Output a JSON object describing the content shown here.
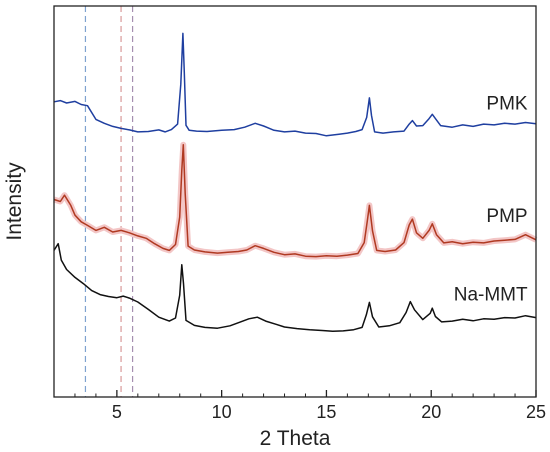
{
  "chart_data": {
    "type": "line",
    "title": "",
    "xlabel": "2 Theta",
    "ylabel": "Intensity",
    "xlim": [
      2,
      25
    ],
    "ylim": [
      0,
      100
    ],
    "x_ticks": [
      5,
      10,
      15,
      20,
      25
    ],
    "y_ticks_shown": false,
    "grid": false,
    "legend": "none",
    "reference_lines": [
      {
        "x": 3.5,
        "style": "dashed",
        "color": "#7fa2cf"
      },
      {
        "x": 5.2,
        "style": "dashed",
        "color": "#d99a9a"
      },
      {
        "x": 5.75,
        "style": "dashed",
        "color": "#a58fb0"
      }
    ],
    "series": [
      {
        "name": "PMK",
        "color": "#1f3fa0",
        "points": [
          [
            2.0,
            75.5
          ],
          [
            2.3,
            75.8
          ],
          [
            2.6,
            75.2
          ],
          [
            3.0,
            75.6
          ],
          [
            3.3,
            74.8
          ],
          [
            3.6,
            74.5
          ],
          [
            4.0,
            71.0
          ],
          [
            4.4,
            70.0
          ],
          [
            4.8,
            69.2
          ],
          [
            5.2,
            68.7
          ],
          [
            5.6,
            68.3
          ],
          [
            6.0,
            67.8
          ],
          [
            6.5,
            67.9
          ],
          [
            7.0,
            68.3
          ],
          [
            7.3,
            67.8
          ],
          [
            7.6,
            68.4
          ],
          [
            7.9,
            69.8
          ],
          [
            8.05,
            80.0
          ],
          [
            8.15,
            93.0
          ],
          [
            8.22,
            83.0
          ],
          [
            8.3,
            69.5
          ],
          [
            8.45,
            68.2
          ],
          [
            8.8,
            68.0
          ],
          [
            9.3,
            67.9
          ],
          [
            10.0,
            68.2
          ],
          [
            10.6,
            68.4
          ],
          [
            11.1,
            69.0
          ],
          [
            11.6,
            70.0
          ],
          [
            12.0,
            69.3
          ],
          [
            12.5,
            68.2
          ],
          [
            13.0,
            67.8
          ],
          [
            13.5,
            68.0
          ],
          [
            14.0,
            67.5
          ],
          [
            14.5,
            67.4
          ],
          [
            15.0,
            66.8
          ],
          [
            15.6,
            67.2
          ],
          [
            16.0,
            67.5
          ],
          [
            16.4,
            67.9
          ],
          [
            16.7,
            68.4
          ],
          [
            16.92,
            71.5
          ],
          [
            17.05,
            76.5
          ],
          [
            17.15,
            72.0
          ],
          [
            17.3,
            67.8
          ],
          [
            17.7,
            67.5
          ],
          [
            18.2,
            67.8
          ],
          [
            18.7,
            68.0
          ],
          [
            18.95,
            69.8
          ],
          [
            19.1,
            70.7
          ],
          [
            19.3,
            69.3
          ],
          [
            19.6,
            69.4
          ],
          [
            19.9,
            71.2
          ],
          [
            20.05,
            72.3
          ],
          [
            20.2,
            71.2
          ],
          [
            20.45,
            69.4
          ],
          [
            21.0,
            69.0
          ],
          [
            21.5,
            69.6
          ],
          [
            22.0,
            69.2
          ],
          [
            22.5,
            69.8
          ],
          [
            23.0,
            69.6
          ],
          [
            23.5,
            70.0
          ],
          [
            24.0,
            69.8
          ],
          [
            24.5,
            70.2
          ],
          [
            25.0,
            69.9
          ]
        ]
      },
      {
        "name": "PMP",
        "color": "#b03a22",
        "points": [
          [
            2.0,
            50.5
          ],
          [
            2.3,
            50.0
          ],
          [
            2.5,
            51.6
          ],
          [
            2.8,
            49.0
          ],
          [
            3.0,
            46.5
          ],
          [
            3.3,
            44.8
          ],
          [
            3.6,
            43.9
          ],
          [
            4.0,
            42.6
          ],
          [
            4.4,
            43.4
          ],
          [
            4.8,
            42.2
          ],
          [
            5.2,
            42.6
          ],
          [
            5.6,
            42.0
          ],
          [
            6.0,
            41.2
          ],
          [
            6.4,
            40.6
          ],
          [
            6.8,
            39.2
          ],
          [
            7.2,
            38.0
          ],
          [
            7.5,
            37.5
          ],
          [
            7.8,
            39.0
          ],
          [
            8.0,
            46.0
          ],
          [
            8.1,
            58.0
          ],
          [
            8.17,
            64.5
          ],
          [
            8.26,
            52.0
          ],
          [
            8.4,
            38.6
          ],
          [
            8.7,
            37.6
          ],
          [
            9.2,
            37.1
          ],
          [
            9.8,
            36.8
          ],
          [
            10.3,
            37.0
          ],
          [
            10.8,
            37.2
          ],
          [
            11.2,
            37.6
          ],
          [
            11.6,
            38.7
          ],
          [
            12.0,
            38.0
          ],
          [
            12.5,
            37.0
          ],
          [
            13.0,
            36.4
          ],
          [
            13.5,
            36.6
          ],
          [
            14.0,
            36.0
          ],
          [
            14.5,
            35.9
          ],
          [
            15.0,
            36.1
          ],
          [
            15.5,
            36.0
          ],
          [
            16.0,
            36.3
          ],
          [
            16.5,
            36.7
          ],
          [
            16.8,
            39.5
          ],
          [
            16.95,
            45.0
          ],
          [
            17.05,
            49.0
          ],
          [
            17.2,
            42.5
          ],
          [
            17.4,
            37.5
          ],
          [
            17.8,
            37.2
          ],
          [
            18.3,
            37.6
          ],
          [
            18.7,
            39.5
          ],
          [
            18.95,
            44.0
          ],
          [
            19.1,
            45.5
          ],
          [
            19.3,
            42.0
          ],
          [
            19.6,
            40.6
          ],
          [
            19.9,
            42.6
          ],
          [
            20.05,
            44.3
          ],
          [
            20.25,
            41.5
          ],
          [
            20.6,
            39.4
          ],
          [
            21.0,
            39.7
          ],
          [
            21.5,
            39.2
          ],
          [
            22.0,
            39.6
          ],
          [
            22.5,
            39.4
          ],
          [
            23.0,
            39.9
          ],
          [
            23.5,
            40.1
          ],
          [
            24.0,
            40.3
          ],
          [
            24.5,
            41.5
          ],
          [
            25.0,
            40.2
          ]
        ]
      },
      {
        "name": "Na-MMT",
        "color": "#111111",
        "points": [
          [
            2.0,
            37.5
          ],
          [
            2.2,
            39.2
          ],
          [
            2.35,
            35.0
          ],
          [
            2.6,
            32.6
          ],
          [
            3.0,
            30.6
          ],
          [
            3.4,
            29.0
          ],
          [
            3.8,
            27.2
          ],
          [
            4.2,
            26.2
          ],
          [
            4.6,
            25.7
          ],
          [
            5.0,
            25.4
          ],
          [
            5.3,
            25.8
          ],
          [
            5.6,
            25.3
          ],
          [
            6.0,
            24.3
          ],
          [
            6.5,
            22.4
          ],
          [
            7.0,
            20.4
          ],
          [
            7.5,
            19.4
          ],
          [
            7.8,
            20.2
          ],
          [
            8.0,
            26.0
          ],
          [
            8.1,
            33.8
          ],
          [
            8.18,
            29.0
          ],
          [
            8.3,
            19.6
          ],
          [
            8.7,
            18.3
          ],
          [
            9.2,
            17.8
          ],
          [
            9.8,
            17.6
          ],
          [
            10.4,
            18.2
          ],
          [
            10.9,
            19.2
          ],
          [
            11.3,
            20.0
          ],
          [
            11.7,
            20.4
          ],
          [
            12.1,
            19.4
          ],
          [
            12.6,
            18.6
          ],
          [
            13.0,
            17.9
          ],
          [
            13.6,
            17.5
          ],
          [
            14.2,
            17.2
          ],
          [
            14.8,
            17.0
          ],
          [
            15.3,
            16.8
          ],
          [
            15.8,
            16.9
          ],
          [
            16.3,
            17.2
          ],
          [
            16.7,
            17.8
          ],
          [
            16.9,
            21.0
          ],
          [
            17.05,
            24.2
          ],
          [
            17.2,
            20.5
          ],
          [
            17.5,
            17.9
          ],
          [
            18.0,
            18.2
          ],
          [
            18.5,
            19.0
          ],
          [
            18.8,
            21.6
          ],
          [
            19.0,
            24.4
          ],
          [
            19.2,
            22.3
          ],
          [
            19.6,
            19.8
          ],
          [
            19.95,
            21.4
          ],
          [
            20.05,
            22.7
          ],
          [
            20.2,
            20.6
          ],
          [
            20.5,
            19.2
          ],
          [
            21.0,
            19.4
          ],
          [
            21.5,
            19.9
          ],
          [
            22.0,
            19.5
          ],
          [
            22.5,
            20.0
          ],
          [
            23.0,
            19.9
          ],
          [
            23.5,
            20.3
          ],
          [
            24.0,
            20.2
          ],
          [
            24.5,
            20.8
          ],
          [
            25.0,
            20.3
          ]
        ]
      }
    ]
  }
}
